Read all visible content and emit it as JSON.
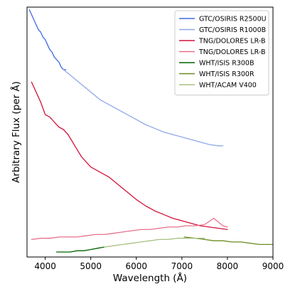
{
  "chart_data": {
    "type": "line",
    "title": "",
    "xlabel": "Wavelength (Å)",
    "ylabel": "Arbitrary Flux (per Å)",
    "xlim": [
      3600,
      9000
    ],
    "ylim": [
      0,
      10
    ],
    "x_ticks": [
      4000,
      5000,
      6000,
      7000,
      8000,
      9000
    ],
    "y_ticks_shown": false,
    "grid": false,
    "legend_position": "top-right",
    "series": [
      {
        "name": "GTC/OSIRIS R2500U",
        "color": "#4169e1",
        "x": [
          3650,
          3700,
          3750,
          3800,
          3850,
          3900,
          3950,
          4000,
          4050,
          4100,
          4150,
          4200,
          4250,
          4300,
          4350,
          4400,
          4450
        ],
        "y": [
          9.9,
          9.7,
          9.5,
          9.3,
          9.1,
          9.0,
          8.8,
          8.7,
          8.5,
          8.3,
          8.2,
          8.0,
          7.9,
          7.8,
          7.6,
          7.5,
          7.5
        ]
      },
      {
        "name": "GTC/OSIRIS R1000B",
        "color": "#8ea8e8",
        "x": [
          4400,
          4600,
          4800,
          5000,
          5200,
          5400,
          5600,
          5800,
          6000,
          6200,
          6400,
          6600,
          6800,
          7000,
          7200,
          7400,
          7600,
          7800,
          7900
        ],
        "y": [
          7.5,
          7.2,
          6.9,
          6.6,
          6.3,
          6.1,
          5.9,
          5.7,
          5.5,
          5.3,
          5.15,
          5.0,
          4.9,
          4.8,
          4.7,
          4.6,
          4.5,
          4.45,
          4.45
        ]
      },
      {
        "name": "TNG/DOLORES LR-B",
        "color": "#d2143c",
        "x": [
          3700,
          3800,
          3900,
          4000,
          4100,
          4200,
          4300,
          4400,
          4500,
          4600,
          4700,
          4800,
          4900,
          5000,
          5200,
          5400,
          5600,
          5800,
          6000,
          6200,
          6400,
          6600,
          6800,
          7000,
          7200,
          7400,
          7600,
          7800,
          8000
        ],
        "y": [
          7.0,
          6.6,
          6.2,
          5.7,
          5.6,
          5.4,
          5.2,
          5.1,
          4.9,
          4.6,
          4.3,
          4.0,
          3.8,
          3.6,
          3.4,
          3.2,
          2.9,
          2.6,
          2.3,
          2.05,
          1.85,
          1.7,
          1.55,
          1.45,
          1.35,
          1.25,
          1.2,
          1.15,
          1.1
        ]
      },
      {
        "name": "TNG/DOLORES LR-B",
        "color": "#e8708c",
        "x": [
          3700,
          3900,
          4100,
          4300,
          4500,
          4700,
          4900,
          5100,
          5300,
          5500,
          5700,
          5900,
          6100,
          6300,
          6500,
          6700,
          6900,
          7100,
          7300,
          7500,
          7700,
          7900,
          8000
        ],
        "y": [
          0.7,
          0.75,
          0.75,
          0.8,
          0.8,
          0.8,
          0.85,
          0.9,
          0.9,
          0.95,
          1.0,
          1.05,
          1.1,
          1.1,
          1.15,
          1.2,
          1.2,
          1.25,
          1.25,
          1.3,
          1.55,
          1.25,
          1.2
        ]
      },
      {
        "name": "WHT/ISIS R300B",
        "color": "#006400",
        "x": [
          4250,
          4400,
          4550,
          4700,
          4850,
          5000,
          5150,
          5300
        ],
        "y": [
          0.2,
          0.2,
          0.2,
          0.25,
          0.25,
          0.3,
          0.35,
          0.4
        ]
      },
      {
        "name": "WHT/ISIS R300R",
        "color": "#6b8e23",
        "x": [
          7050,
          7300,
          7500,
          7700,
          7900,
          8100,
          8300,
          8500,
          8700,
          8900,
          9000
        ],
        "y": [
          0.8,
          0.75,
          0.7,
          0.65,
          0.65,
          0.6,
          0.6,
          0.55,
          0.5,
          0.5,
          0.5
        ]
      },
      {
        "name": "WHT/ACAM V400",
        "color": "#a8c080",
        "x": [
          5300,
          5500,
          5700,
          5900,
          6100,
          6300,
          6500,
          6700,
          6900,
          7100,
          7300,
          7500
        ],
        "y": [
          0.4,
          0.45,
          0.5,
          0.55,
          0.6,
          0.65,
          0.7,
          0.7,
          0.75,
          0.75,
          0.75,
          0.75
        ]
      }
    ]
  }
}
